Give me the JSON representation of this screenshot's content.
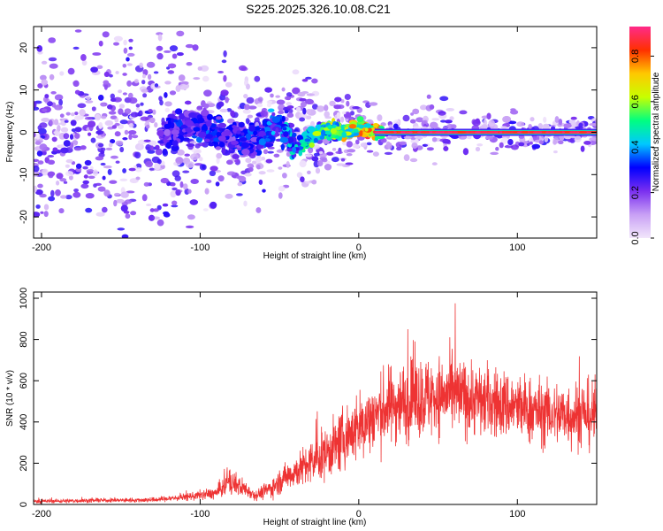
{
  "title": "S225.2025.326.10.08.C21",
  "chart_data": [
    {
      "type": "heatmap",
      "xlabel": "Height of straight line (km)",
      "ylabel": "Frequency (Hz)",
      "xlim": [
        -205,
        150
      ],
      "ylim": [
        -25,
        25
      ],
      "xticks": [
        -200,
        -100,
        0,
        100
      ],
      "yticks": [
        -20,
        -10,
        0,
        10,
        20
      ],
      "colorbar": {
        "label": "Normalized spectral amplitude",
        "range": [
          0,
          0.93
        ],
        "ticks": [
          "0.0",
          "0.2",
          "0.4",
          "0.6",
          "0.8"
        ],
        "tick_values": [
          0,
          0.2,
          0.4,
          0.6,
          0.8
        ],
        "colors": [
          "#f2e6fb",
          "#c8a0f5",
          "#7a2ff0",
          "#0000ff",
          "#00c8ff",
          "#00ff80",
          "#c8ff00",
          "#ffc800",
          "#ff3000",
          "#ff2a8a"
        ]
      },
      "ridge": {
        "description_points_x": [
          -120,
          -100,
          -80,
          -60,
          -50,
          -40,
          -30,
          -20,
          -10,
          0,
          10,
          50,
          100,
          150
        ],
        "description_points_y": [
          0,
          2,
          -2,
          -1,
          2,
          -4,
          -1,
          1,
          0,
          1,
          0,
          0,
          0,
          0
        ],
        "amplitude": [
          0.3,
          0.35,
          0.3,
          0.35,
          0.4,
          0.45,
          0.55,
          0.6,
          0.7,
          0.8,
          0.9,
          0.9,
          0.9,
          0.9
        ]
      },
      "grid": false
    },
    {
      "type": "line",
      "xlabel": "Height of straight line (km)",
      "ylabel": "SNR (10 * v/v)",
      "xlim": [
        -205,
        150
      ],
      "ylim": [
        0,
        1030
      ],
      "xticks": [
        -200,
        -100,
        0,
        100
      ],
      "yticks": [
        0,
        200,
        400,
        600,
        800,
        1000
      ],
      "color": "#ee3333",
      "envelope": {
        "x": [
          -205,
          -160,
          -130,
          -110,
          -90,
          -82,
          -75,
          -65,
          -55,
          -45,
          -30,
          -15,
          0,
          20,
          40,
          60,
          80,
          100,
          120,
          150
        ],
        "mean": [
          15,
          20,
          22,
          35,
          55,
          110,
          90,
          45,
          80,
          140,
          200,
          280,
          380,
          480,
          520,
          530,
          500,
          470,
          440,
          430
        ],
        "spread": [
          10,
          10,
          12,
          18,
          30,
          70,
          50,
          25,
          50,
          70,
          110,
          140,
          170,
          190,
          200,
          190,
          180,
          170,
          160,
          170
        ]
      },
      "grid": false
    }
  ]
}
